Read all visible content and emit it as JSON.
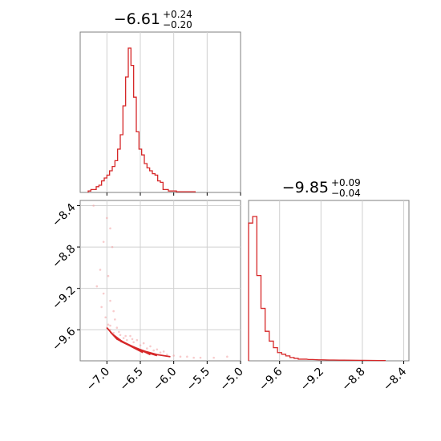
{
  "chart_data": [
    {
      "type": "histogram",
      "panel": "top-left",
      "title": {
        "main": "−6.61",
        "sup": "+0.24",
        "sub": "−0.20"
      },
      "color": "#d62728",
      "grid": true,
      "xlim": [
        -7.4,
        -5.0
      ],
      "x_ticks": [
        -7.0,
        -6.5,
        -6.0,
        -5.5,
        -5.0
      ],
      "bins": [
        [
          -7.26,
          0.01
        ],
        [
          -7.22,
          0.02
        ],
        [
          -7.18,
          0.02
        ],
        [
          -7.14,
          0.04
        ],
        [
          -7.1,
          0.05
        ],
        [
          -7.06,
          0.08
        ],
        [
          -7.02,
          0.1
        ],
        [
          -6.98,
          0.12
        ],
        [
          -6.94,
          0.15
        ],
        [
          -6.9,
          0.18
        ],
        [
          -6.86,
          0.22
        ],
        [
          -6.82,
          0.3
        ],
        [
          -6.78,
          0.4
        ],
        [
          -6.74,
          0.6
        ],
        [
          -6.7,
          0.8
        ],
        [
          -6.66,
          1.0
        ],
        [
          -6.62,
          0.88
        ],
        [
          -6.58,
          0.66
        ],
        [
          -6.54,
          0.42
        ],
        [
          -6.5,
          0.3
        ],
        [
          -6.46,
          0.26
        ],
        [
          -6.42,
          0.2
        ],
        [
          -6.38,
          0.17
        ],
        [
          -6.34,
          0.15
        ],
        [
          -6.3,
          0.13
        ],
        [
          -6.26,
          0.12
        ],
        [
          -6.22,
          0.08
        ],
        [
          -6.18,
          0.07
        ],
        [
          -6.14,
          0.02
        ],
        [
          -6.1,
          0.02
        ],
        [
          -6.06,
          0.01
        ],
        [
          -6.02,
          0.01
        ],
        [
          -5.98,
          0.01
        ],
        [
          -5.94,
          0.005
        ],
        [
          -5.9,
          0.005
        ],
        [
          -5.86,
          0.005
        ],
        [
          -5.82,
          0.005
        ],
        [
          -5.7,
          0.005
        ]
      ]
    },
    {
      "type": "scatter_contour",
      "panel": "bottom-left",
      "color": "#d62728",
      "grid": true,
      "xlim": [
        -7.4,
        -5.0
      ],
      "ylim": [
        -9.9,
        -8.35
      ],
      "x_ticks": [
        -7.0,
        -6.5,
        -6.0,
        -5.5,
        -5.0
      ],
      "y_ticks": [
        -8.4,
        -8.8,
        -9.2,
        -9.6
      ],
      "points": [
        [
          -7.2,
          -8.4
        ],
        [
          -7.0,
          -8.52
        ],
        [
          -6.95,
          -8.62
        ],
        [
          -7.05,
          -8.75
        ],
        [
          -6.92,
          -8.8
        ],
        [
          -7.1,
          -9.02
        ],
        [
          -6.98,
          -9.08
        ],
        [
          -7.15,
          -9.18
        ],
        [
          -7.05,
          -9.25
        ],
        [
          -6.95,
          -9.32
        ],
        [
          -7.08,
          -9.38
        ],
        [
          -6.9,
          -9.42
        ],
        [
          -7.02,
          -9.48
        ],
        [
          -6.88,
          -9.5
        ],
        [
          -6.98,
          -9.55
        ],
        [
          -6.85,
          -9.58
        ],
        [
          -6.95,
          -9.6
        ],
        [
          -6.9,
          -9.63
        ],
        [
          -6.8,
          -9.65
        ],
        [
          -6.75,
          -9.68
        ],
        [
          -6.7,
          -9.7
        ],
        [
          -6.6,
          -9.72
        ],
        [
          -6.5,
          -9.75
        ],
        [
          -6.4,
          -9.78
        ],
        [
          -6.3,
          -9.8
        ],
        [
          -6.2,
          -9.82
        ],
        [
          -6.1,
          -9.84
        ],
        [
          -6.0,
          -9.85
        ],
        [
          -5.9,
          -9.86
        ],
        [
          -5.8,
          -9.86
        ],
        [
          -5.7,
          -9.87
        ],
        [
          -5.6,
          -9.87
        ],
        [
          -5.4,
          -9.87
        ],
        [
          -5.2,
          -9.86
        ],
        [
          -6.65,
          -9.66
        ],
        [
          -6.55,
          -9.7
        ],
        [
          -6.45,
          -9.73
        ],
        [
          -6.35,
          -9.76
        ],
        [
          -6.25,
          -9.79
        ],
        [
          -6.15,
          -9.81
        ],
        [
          -7.0,
          -9.58
        ],
        [
          -6.95,
          -9.56
        ],
        [
          -6.82,
          -9.62
        ],
        [
          -6.72,
          -9.66
        ],
        [
          -6.62,
          -9.69
        ]
      ],
      "contours": [
        [
          [
            -7.0,
            -9.58
          ],
          [
            -6.92,
            -9.64
          ],
          [
            -6.78,
            -9.71
          ],
          [
            -6.6,
            -9.77
          ],
          [
            -6.42,
            -9.81
          ],
          [
            -6.25,
            -9.84
          ],
          [
            -6.05,
            -9.86
          ]
        ],
        [
          [
            -6.95,
            -9.62
          ],
          [
            -6.85,
            -9.69
          ],
          [
            -6.7,
            -9.74
          ],
          [
            -6.55,
            -9.78
          ],
          [
            -6.4,
            -9.82
          ],
          [
            -6.25,
            -9.85
          ]
        ],
        [
          [
            -6.88,
            -9.67
          ],
          [
            -6.75,
            -9.72
          ],
          [
            -6.62,
            -9.76
          ],
          [
            -6.48,
            -9.8
          ],
          [
            -6.35,
            -9.84
          ]
        ],
        [
          [
            -6.8,
            -9.71
          ],
          [
            -6.7,
            -9.74
          ],
          [
            -6.58,
            -9.78
          ],
          [
            -6.46,
            -9.82
          ]
        ]
      ]
    },
    {
      "type": "histogram",
      "panel": "bottom-right",
      "title": {
        "main": "−9.85",
        "sup": "+0.09",
        "sub": "−0.04"
      },
      "color": "#d62728",
      "grid": true,
      "xlim": [
        -9.9,
        -8.35
      ],
      "x_ticks": [
        -9.6,
        -9.2,
        -8.8,
        -8.4
      ],
      "bins": [
        [
          -9.88,
          0.84
        ],
        [
          -9.84,
          0.88
        ],
        [
          -9.8,
          0.52
        ],
        [
          -9.76,
          0.32
        ],
        [
          -9.72,
          0.18
        ],
        [
          -9.68,
          0.12
        ],
        [
          -9.64,
          0.08
        ],
        [
          -9.6,
          0.05
        ],
        [
          -9.56,
          0.04
        ],
        [
          -9.52,
          0.03
        ],
        [
          -9.48,
          0.02
        ],
        [
          -9.44,
          0.015
        ],
        [
          -9.4,
          0.01
        ],
        [
          -9.36,
          0.01
        ],
        [
          -9.3,
          0.008
        ],
        [
          -9.2,
          0.006
        ],
        [
          -9.1,
          0.005
        ],
        [
          -9.0,
          0.004
        ],
        [
          -8.8,
          0.003
        ],
        [
          -8.6,
          0.002
        ]
      ]
    }
  ]
}
